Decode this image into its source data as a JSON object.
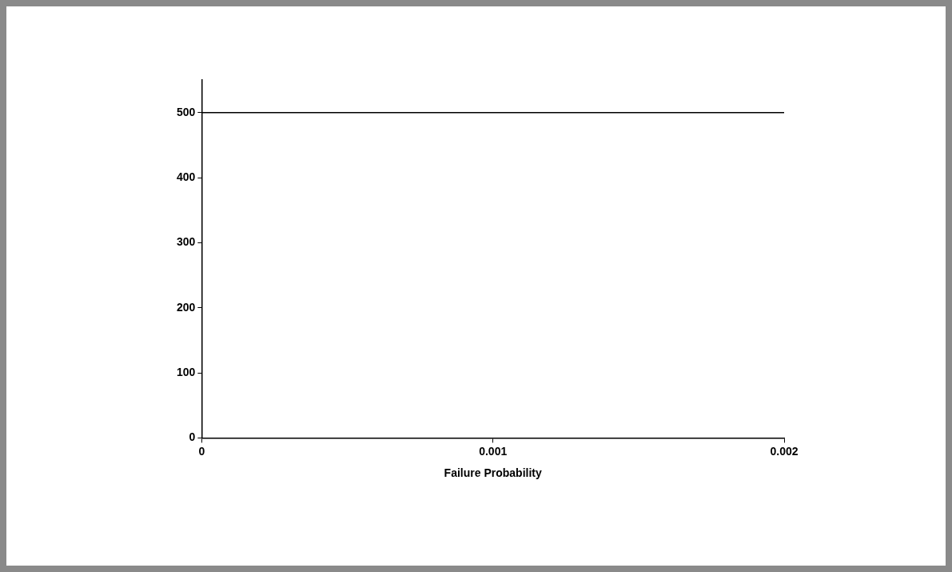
{
  "chart_data": {
    "type": "line",
    "xlabel": "Failure Probability",
    "x": [
      0,
      0.002
    ],
    "series": [
      {
        "color": "#000000",
        "values": [
          500,
          500
        ]
      }
    ],
    "xlim": [
      0,
      0.002
    ],
    "xticks": [
      0,
      0.001,
      0.002
    ],
    "ylim": [
      0,
      550
    ],
    "yticks": [
      0,
      100,
      200,
      300,
      400,
      500
    ],
    "grid": false,
    "legend": false,
    "marker": "none",
    "line_style": "solid"
  }
}
